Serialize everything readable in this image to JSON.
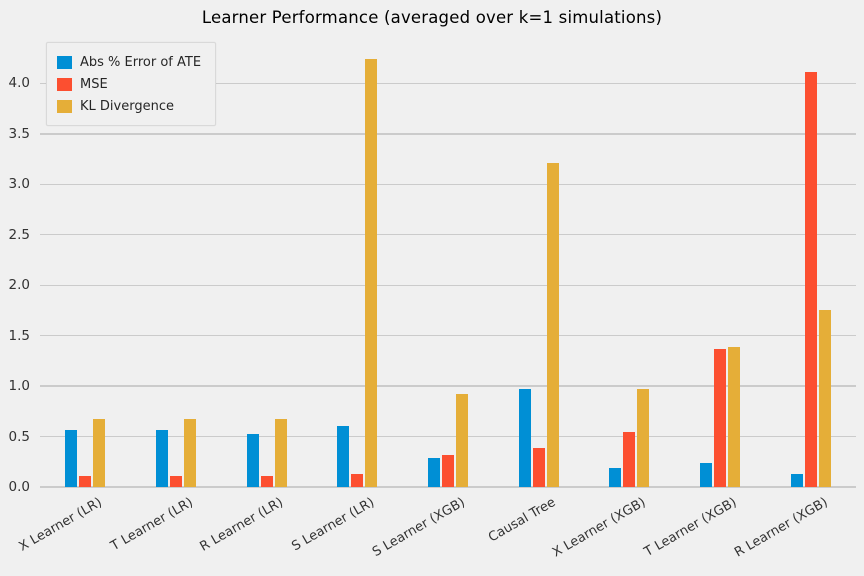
{
  "title": "Learner Performance (averaged over k=1 simulations)",
  "colors": {
    "background": "#f0f0f0",
    "grid": "#cbcbcb",
    "text": "#333333",
    "series_blue": "#008fd5",
    "series_red": "#fc4f30",
    "series_yellow": "#e5ae38"
  },
  "chart_data": {
    "type": "bar",
    "title": "Learner Performance (averaged over k=1 simulations)",
    "categories": [
      "X Learner (LR)",
      "T Learner (LR)",
      "R Learner (LR)",
      "S Learner (LR)",
      "S Learner (XGB)",
      "Causal Tree",
      "X Learner (XGB)",
      "T Learner (XGB)",
      "R Learner (XGB)"
    ],
    "series": [
      {
        "name": "Abs % Error of ATE",
        "color": "#008fd5",
        "values": [
          0.56,
          0.56,
          0.53,
          0.6,
          0.29,
          0.97,
          0.19,
          0.24,
          0.13
        ]
      },
      {
        "name": "MSE",
        "color": "#fc4f30",
        "values": [
          0.11,
          0.11,
          0.11,
          0.13,
          0.32,
          0.39,
          0.55,
          1.37,
          4.11
        ]
      },
      {
        "name": "KL Divergence",
        "color": "#e5ae38",
        "values": [
          0.67,
          0.67,
          0.67,
          4.24,
          0.92,
          3.21,
          0.97,
          1.39,
          1.75
        ]
      }
    ],
    "xlabel": "",
    "ylabel": "",
    "ylim": [
      0,
      4.45
    ],
    "yticks": [
      0.0,
      0.5,
      1.0,
      1.5,
      2.0,
      2.5,
      3.0,
      3.5,
      4.0
    ],
    "grid": true,
    "legend_position": "upper-left"
  }
}
